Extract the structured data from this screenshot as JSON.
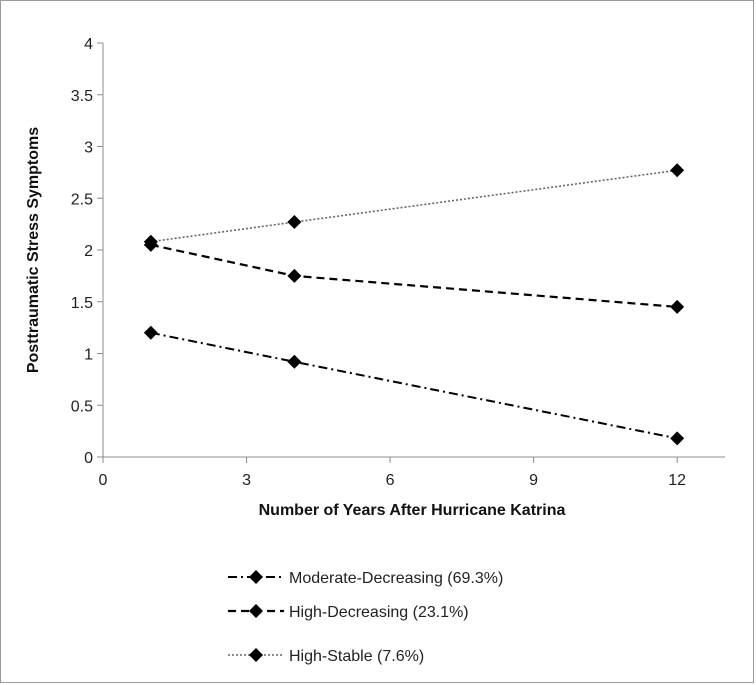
{
  "chart_data": {
    "type": "line",
    "title": "",
    "xlabel": "Number of Years After Hurricane Katrina",
    "ylabel": "Posttraumatic Stress Symptoms",
    "xlim": [
      0,
      13
    ],
    "ylim": [
      0,
      4
    ],
    "xticks": [
      0,
      3,
      6,
      9,
      12
    ],
    "yticks": [
      0,
      0.5,
      1,
      1.5,
      2,
      2.5,
      3,
      3.5,
      4
    ],
    "xtick_labels": [
      "0",
      "3",
      "6",
      "9",
      "12"
    ],
    "ytick_labels": [
      "0",
      "0.5",
      "1",
      "1.5",
      "2",
      "2.5",
      "3",
      "3.5",
      "4"
    ],
    "grid": false,
    "legend_position": "bottom",
    "x": [
      1,
      4,
      12
    ],
    "series": [
      {
        "name": "Moderate-Decreasing (69.3%)",
        "values": [
          1.2,
          0.92,
          0.18
        ],
        "dash": "dashdot",
        "color": "#000000"
      },
      {
        "name": "High-Decreasing (23.1%)",
        "values": [
          2.05,
          1.75,
          1.45
        ],
        "dash": "dash",
        "color": "#000000"
      },
      {
        "name": "High-Stable (7.6%)",
        "values": [
          2.08,
          2.27,
          2.77
        ],
        "dash": "dot",
        "color": "#666666"
      }
    ]
  }
}
